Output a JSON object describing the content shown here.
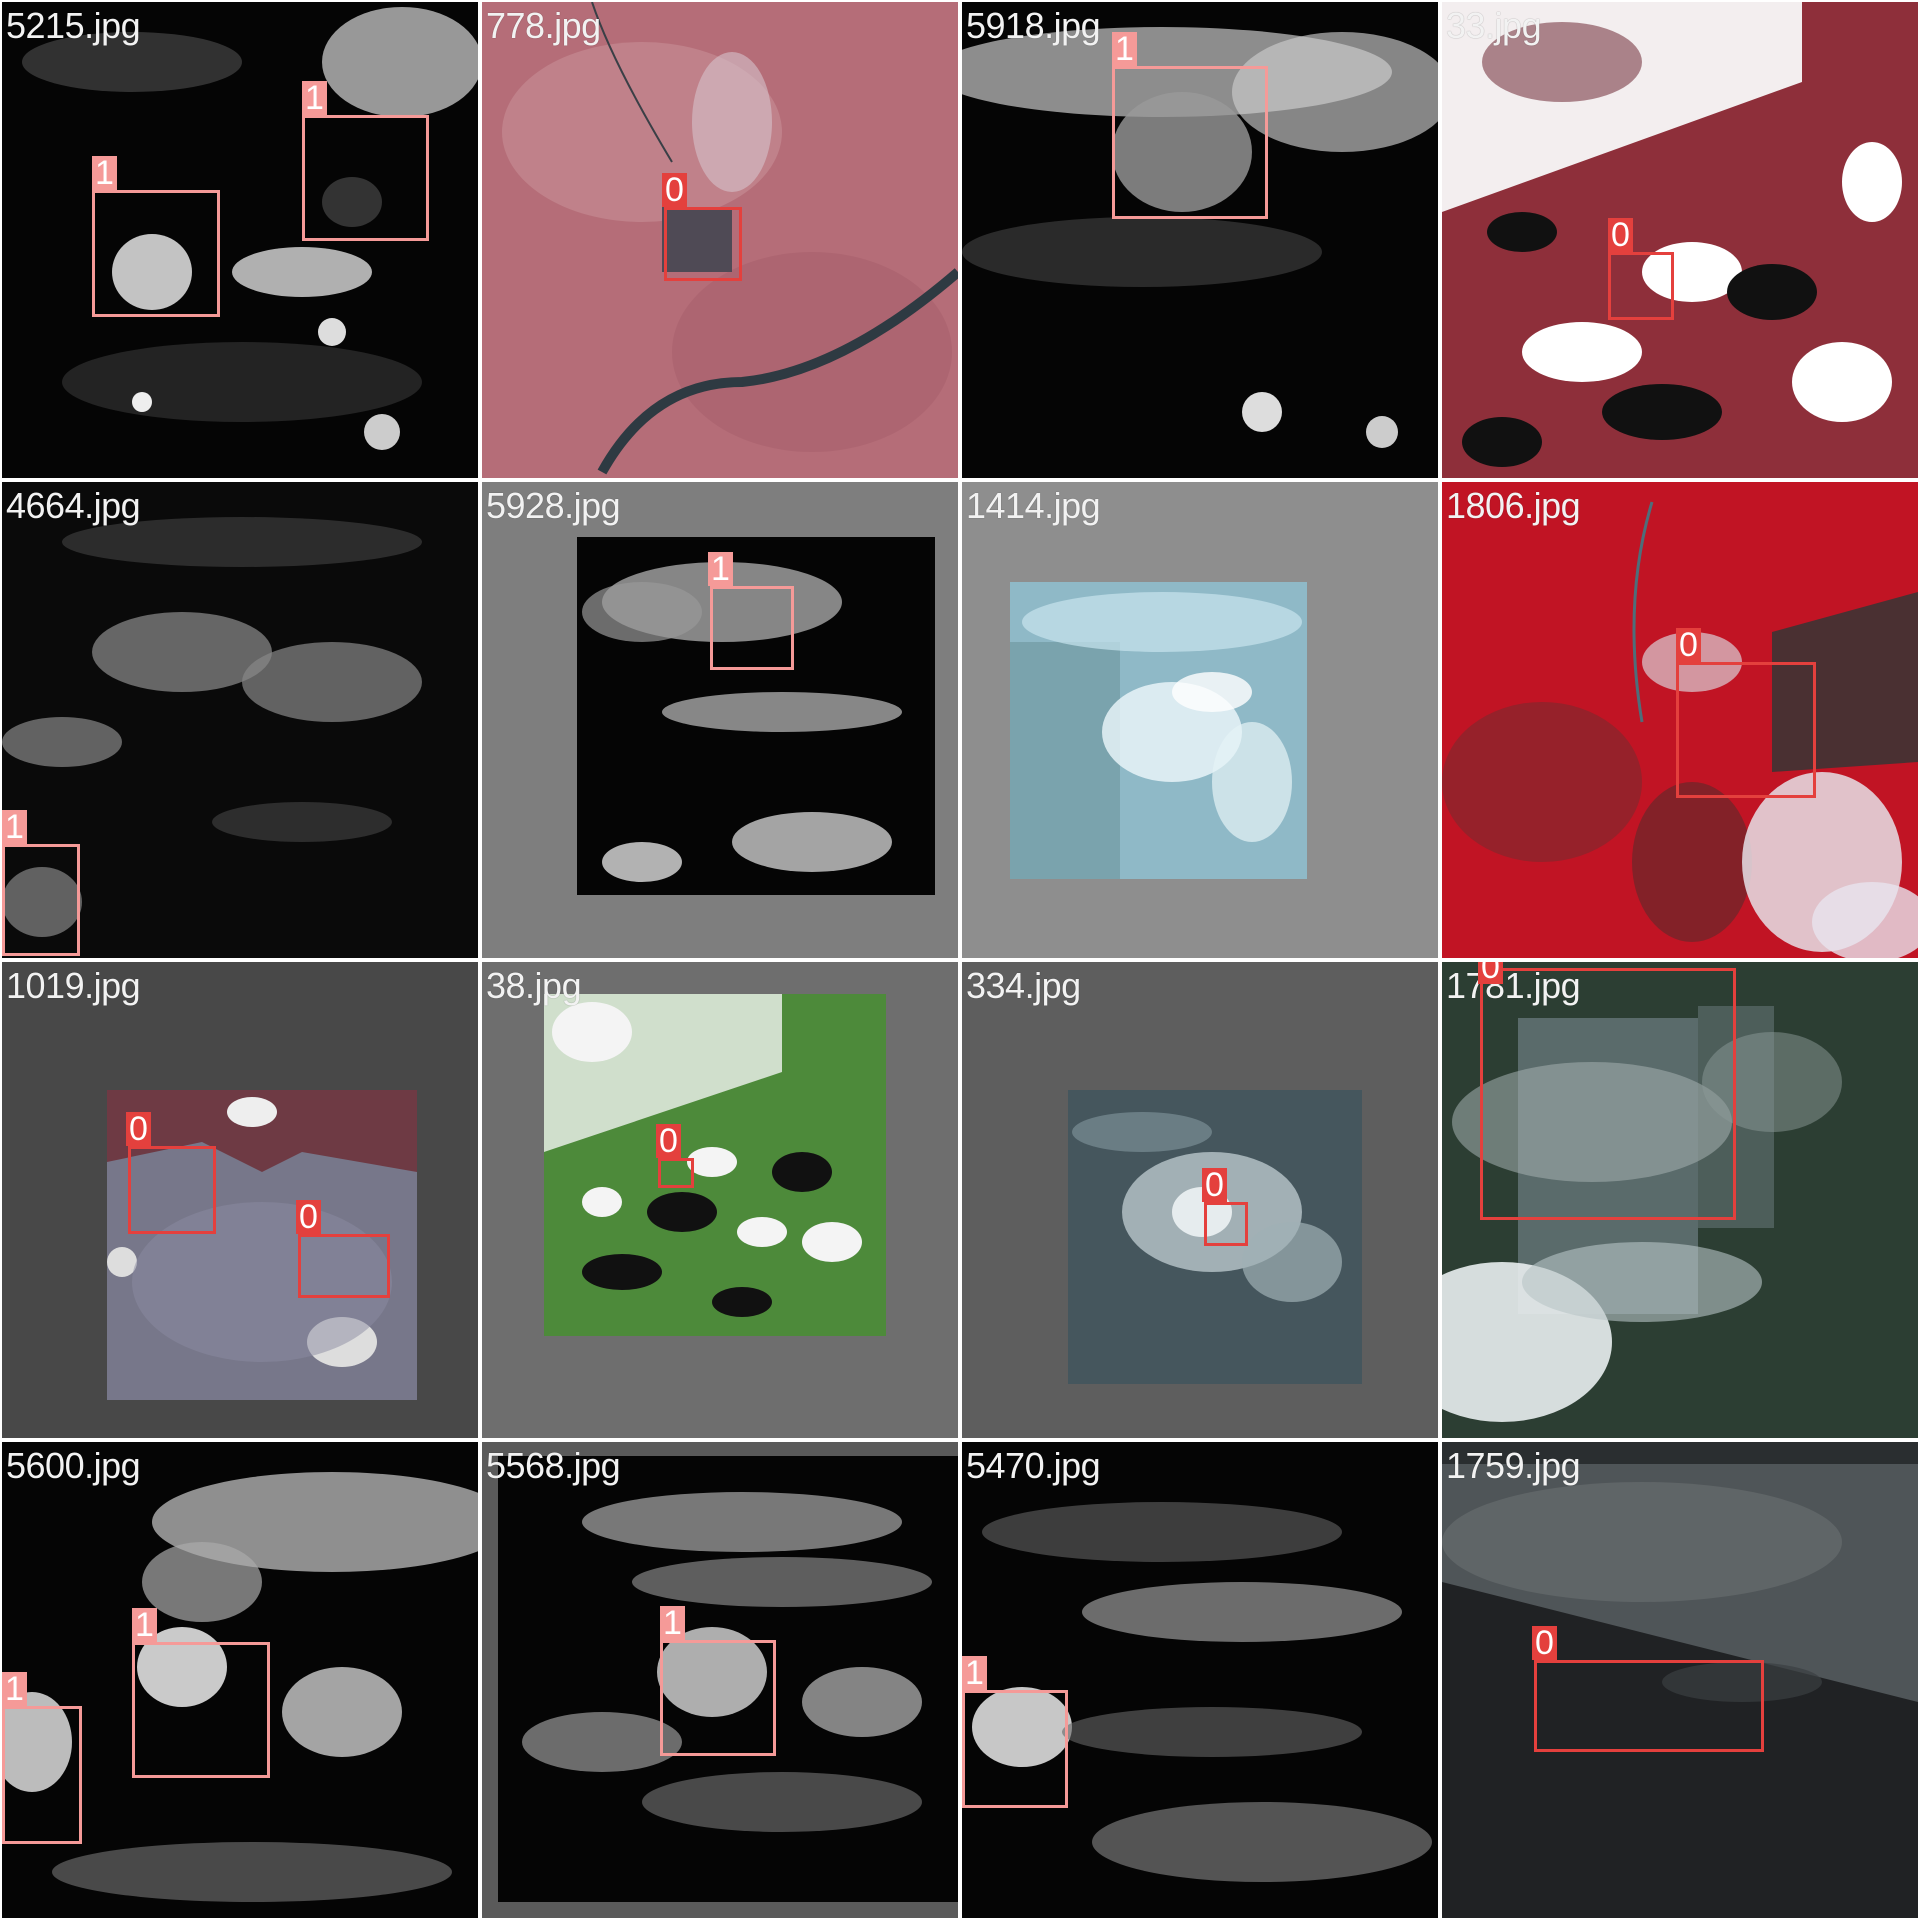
{
  "colors": {
    "class_0": "#e4403d",
    "class_1": "#f59a98",
    "label_text": "#f2f2f2"
  },
  "tiles": [
    {
      "filename": "5215.jpg",
      "boxes": [
        {
          "class_label": "1"
        },
        {
          "class_label": "1"
        }
      ]
    },
    {
      "filename": "778.jpg",
      "boxes": [
        {
          "class_label": "0"
        }
      ]
    },
    {
      "filename": "5918.jpg",
      "boxes": [
        {
          "class_label": "1"
        }
      ]
    },
    {
      "filename": "33.jpg",
      "boxes": [
        {
          "class_label": "0"
        }
      ]
    },
    {
      "filename": "4664.jpg",
      "boxes": [
        {
          "class_label": "1"
        }
      ]
    },
    {
      "filename": "5928.jpg",
      "boxes": [
        {
          "class_label": "1"
        }
      ]
    },
    {
      "filename": "1414.jpg",
      "boxes": []
    },
    {
      "filename": "1806.jpg",
      "boxes": [
        {
          "class_label": "0"
        }
      ]
    },
    {
      "filename": "1019.jpg",
      "boxes": [
        {
          "class_label": "0"
        },
        {
          "class_label": "0"
        }
      ]
    },
    {
      "filename": "38.jpg",
      "boxes": [
        {
          "class_label": "0"
        }
      ]
    },
    {
      "filename": "334.jpg",
      "boxes": [
        {
          "class_label": "0"
        }
      ]
    },
    {
      "filename": "1781.jpg",
      "boxes": [
        {
          "class_label": "0"
        }
      ]
    },
    {
      "filename": "5600.jpg",
      "boxes": [
        {
          "class_label": "1"
        },
        {
          "class_label": "1"
        }
      ]
    },
    {
      "filename": "5568.jpg",
      "boxes": [
        {
          "class_label": "1"
        }
      ]
    },
    {
      "filename": "5470.jpg",
      "boxes": [
        {
          "class_label": "1"
        }
      ]
    },
    {
      "filename": "1759.jpg",
      "boxes": [
        {
          "class_label": "0"
        }
      ]
    }
  ]
}
